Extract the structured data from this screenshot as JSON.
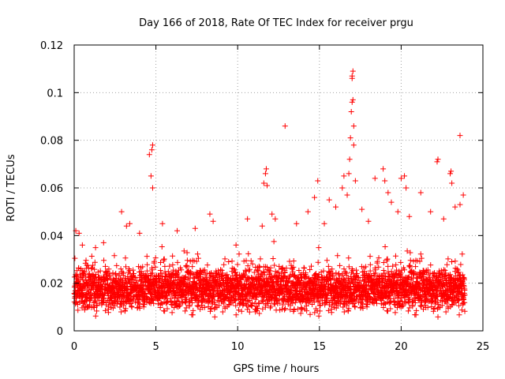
{
  "chart_data": {
    "type": "scatter",
    "title": "Day 166 of 2018, Rate Of TEC Index for receiver prgu",
    "xlabel": "GPS time / hours",
    "ylabel": "ROTI / TECUs",
    "xlim": [
      0,
      25
    ],
    "ylim": [
      0,
      0.12
    ],
    "x_ticks": [
      0,
      5,
      10,
      15,
      20,
      25
    ],
    "x_tick_labels": [
      "0",
      "5",
      "10",
      "15",
      "20",
      "25"
    ],
    "y_ticks": [
      0,
      0.02,
      0.04,
      0.06,
      0.08,
      0.1,
      0.12
    ],
    "y_tick_labels": [
      "0",
      "0.02",
      "0.04",
      "0.06",
      "0.08",
      "0.1",
      "0.12"
    ],
    "grid": true,
    "marker": "+",
    "series": [
      {
        "name": "ROTI",
        "color": "#ff0000",
        "note": "dense band mostly between 0.005 and 0.03 TECU/s; notable outliers listed",
        "band": {
          "x_start": 0.0,
          "x_end": 23.9,
          "low": 0.005,
          "high": 0.03
        },
        "outliers": [
          {
            "x": 0.1,
            "y": 0.042
          },
          {
            "x": 0.3,
            "y": 0.041
          },
          {
            "x": 0.5,
            "y": 0.036
          },
          {
            "x": 1.8,
            "y": 0.037
          },
          {
            "x": 2.9,
            "y": 0.05
          },
          {
            "x": 3.2,
            "y": 0.044
          },
          {
            "x": 3.4,
            "y": 0.045
          },
          {
            "x": 4.0,
            "y": 0.041
          },
          {
            "x": 4.6,
            "y": 0.074
          },
          {
            "x": 4.7,
            "y": 0.065
          },
          {
            "x": 4.75,
            "y": 0.076
          },
          {
            "x": 4.8,
            "y": 0.078
          },
          {
            "x": 4.8,
            "y": 0.06
          },
          {
            "x": 5.4,
            "y": 0.045
          },
          {
            "x": 6.3,
            "y": 0.042
          },
          {
            "x": 7.4,
            "y": 0.043
          },
          {
            "x": 8.3,
            "y": 0.049
          },
          {
            "x": 8.5,
            "y": 0.046
          },
          {
            "x": 9.9,
            "y": 0.036
          },
          {
            "x": 10.6,
            "y": 0.047
          },
          {
            "x": 11.5,
            "y": 0.044
          },
          {
            "x": 11.6,
            "y": 0.062
          },
          {
            "x": 11.7,
            "y": 0.066
          },
          {
            "x": 11.75,
            "y": 0.068
          },
          {
            "x": 11.8,
            "y": 0.061
          },
          {
            "x": 12.1,
            "y": 0.049
          },
          {
            "x": 12.3,
            "y": 0.047
          },
          {
            "x": 12.9,
            "y": 0.086
          },
          {
            "x": 13.6,
            "y": 0.045
          },
          {
            "x": 14.3,
            "y": 0.05
          },
          {
            "x": 14.7,
            "y": 0.056
          },
          {
            "x": 14.9,
            "y": 0.063
          },
          {
            "x": 15.3,
            "y": 0.045
          },
          {
            "x": 15.6,
            "y": 0.055
          },
          {
            "x": 16.0,
            "y": 0.052
          },
          {
            "x": 16.4,
            "y": 0.06
          },
          {
            "x": 16.5,
            "y": 0.065
          },
          {
            "x": 16.7,
            "y": 0.057
          },
          {
            "x": 16.8,
            "y": 0.066
          },
          {
            "x": 16.85,
            "y": 0.072
          },
          {
            "x": 16.9,
            "y": 0.081
          },
          {
            "x": 16.95,
            "y": 0.092
          },
          {
            "x": 17.0,
            "y": 0.096
          },
          {
            "x": 17.0,
            "y": 0.106
          },
          {
            "x": 17.0,
            "y": 0.107
          },
          {
            "x": 17.05,
            "y": 0.109
          },
          {
            "x": 17.05,
            "y": 0.097
          },
          {
            "x": 17.1,
            "y": 0.086
          },
          {
            "x": 17.1,
            "y": 0.078
          },
          {
            "x": 17.2,
            "y": 0.063
          },
          {
            "x": 17.6,
            "y": 0.051
          },
          {
            "x": 18.0,
            "y": 0.046
          },
          {
            "x": 18.4,
            "y": 0.064
          },
          {
            "x": 18.9,
            "y": 0.068
          },
          {
            "x": 19.0,
            "y": 0.063
          },
          {
            "x": 19.2,
            "y": 0.058
          },
          {
            "x": 19.4,
            "y": 0.054
          },
          {
            "x": 19.8,
            "y": 0.05
          },
          {
            "x": 20.0,
            "y": 0.064
          },
          {
            "x": 20.2,
            "y": 0.065
          },
          {
            "x": 20.3,
            "y": 0.06
          },
          {
            "x": 20.5,
            "y": 0.048
          },
          {
            "x": 21.2,
            "y": 0.058
          },
          {
            "x": 21.8,
            "y": 0.05
          },
          {
            "x": 22.2,
            "y": 0.071
          },
          {
            "x": 22.25,
            "y": 0.072
          },
          {
            "x": 22.6,
            "y": 0.047
          },
          {
            "x": 23.0,
            "y": 0.066
          },
          {
            "x": 23.05,
            "y": 0.067
          },
          {
            "x": 23.1,
            "y": 0.062
          },
          {
            "x": 23.3,
            "y": 0.052
          },
          {
            "x": 23.6,
            "y": 0.053
          },
          {
            "x": 23.6,
            "y": 0.082
          },
          {
            "x": 23.8,
            "y": 0.057
          }
        ]
      }
    ]
  }
}
